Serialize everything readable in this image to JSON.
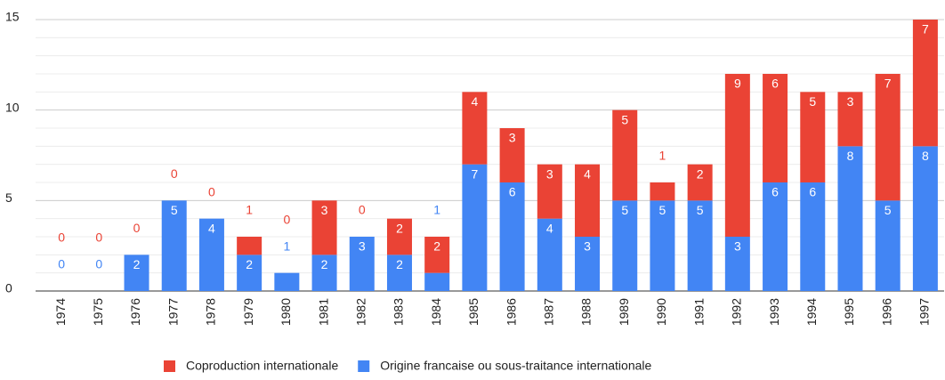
{
  "chart_data": {
    "type": "stacked_bar",
    "categories": [
      "1974",
      "1975",
      "1976",
      "1977",
      "1978",
      "1979",
      "1980",
      "1981",
      "1982",
      "1983",
      "1984",
      "1985",
      "1986",
      "1987",
      "1988",
      "1989",
      "1990",
      "1991",
      "1992",
      "1993",
      "1994",
      "1995",
      "1996",
      "1997"
    ],
    "series": [
      {
        "name": "Origine francaise ou sous-traitance internationale",
        "color": "#4285f4",
        "values": [
          0,
          0,
          2,
          5,
          4,
          2,
          1,
          2,
          3,
          2,
          1,
          7,
          6,
          4,
          3,
          5,
          5,
          5,
          3,
          6,
          6,
          8,
          5,
          8
        ]
      },
      {
        "name": "Coproduction internationale",
        "color": "#ea4335",
        "values": [
          0,
          0,
          0,
          0,
          0,
          1,
          0,
          3,
          0,
          2,
          2,
          4,
          3,
          3,
          4,
          5,
          1,
          2,
          9,
          6,
          5,
          3,
          7,
          7
        ]
      }
    ],
    "ylim": [
      0,
      15
    ],
    "yticks": [
      0,
      5,
      10,
      15
    ],
    "minor_yticks": [
      1,
      2,
      3,
      4,
      6,
      7,
      8,
      9,
      11,
      12,
      13,
      14
    ],
    "grid": true,
    "legend": "bottom"
  }
}
